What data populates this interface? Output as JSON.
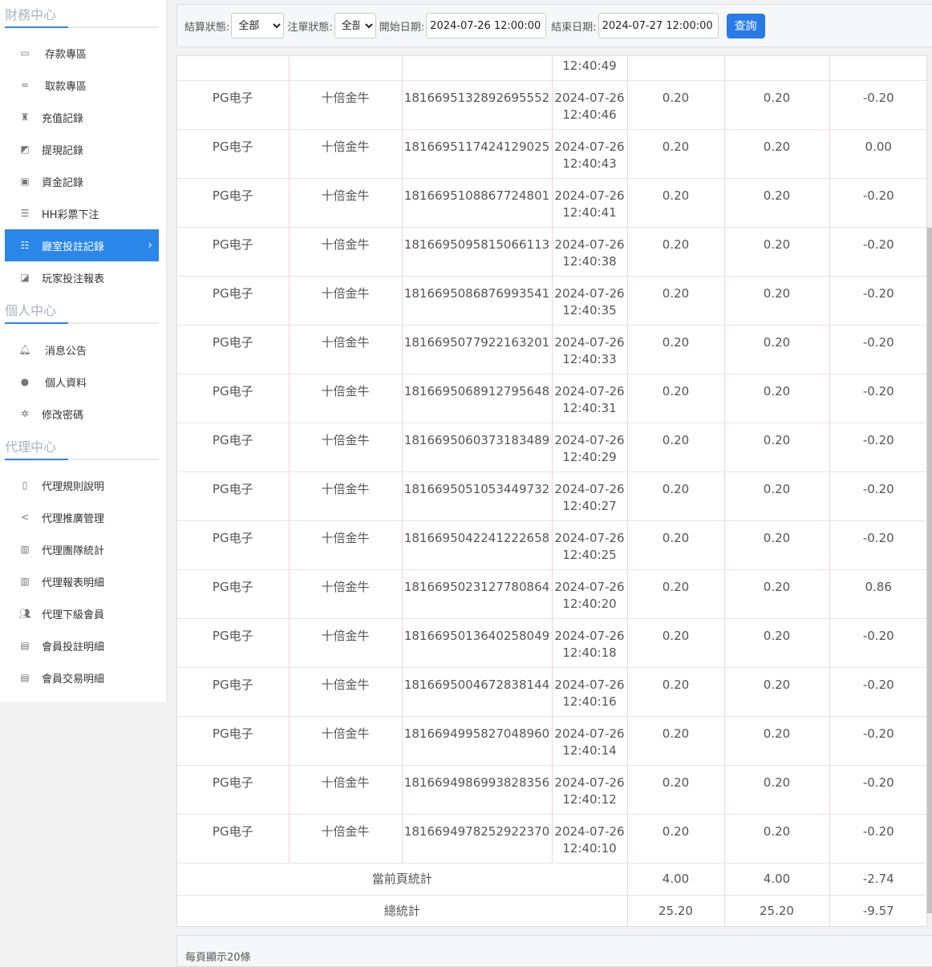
{
  "sidebar": {
    "finance_title": "財務中心",
    "finance_items": [
      {
        "label": "存款專區",
        "icon": "card-icon"
      },
      {
        "label": "取款專區",
        "icon": "hand-money-icon"
      },
      {
        "label": "充值記錄",
        "icon": "money-bag-icon"
      },
      {
        "label": "提現記錄",
        "icon": "wallet-icon"
      },
      {
        "label": "資金記錄",
        "icon": "safe-icon"
      },
      {
        "label": "HH彩票下注",
        "icon": "list-icon"
      },
      {
        "label": "廳室投註記錄",
        "icon": "list-bullets-icon",
        "active": true
      },
      {
        "label": "玩家投注報表",
        "icon": "chart-icon"
      }
    ],
    "personal_title": "個人中心",
    "personal_items": [
      {
        "label": "消息公告",
        "icon": "bell-icon"
      },
      {
        "label": "個人資料",
        "icon": "user-icon"
      },
      {
        "label": "修改密碼",
        "icon": "gear-icon"
      }
    ],
    "agent_title": "代理中心",
    "agent_items": [
      {
        "label": "代理規則說明",
        "icon": "file-icon"
      },
      {
        "label": "代理推廣管理",
        "icon": "share-icon"
      },
      {
        "label": "代理團隊統計",
        "icon": "book-icon"
      },
      {
        "label": "代理報表明細",
        "icon": "book-icon"
      },
      {
        "label": "代理下級會員",
        "icon": "users-icon"
      },
      {
        "label": "會員投註明細",
        "icon": "clipboard-icon"
      },
      {
        "label": "會員交易明細",
        "icon": "document-icon"
      }
    ]
  },
  "filter": {
    "settle_label": "結算狀態:",
    "settle_value": "全部",
    "order_label": "注單狀態:",
    "order_value": "全部",
    "start_label": "開始日期:",
    "start_value": "2024-07-26 12:00:00",
    "end_label": "結束日期:",
    "end_value": "2024-07-27 12:00:00",
    "query_label": "查詢"
  },
  "table": {
    "first_partial_time": "12:40:49",
    "rows": [
      [
        "PG电子",
        "十倍金牛",
        "1816695132892695552",
        "2024-07-26",
        "12:40:46",
        "0.20",
        "0.20",
        "-0.20"
      ],
      [
        "PG电子",
        "十倍金牛",
        "1816695117424129025",
        "2024-07-26",
        "12:40:43",
        "0.20",
        "0.20",
        "0.00"
      ],
      [
        "PG电子",
        "十倍金牛",
        "1816695108867724801",
        "2024-07-26",
        "12:40:41",
        "0.20",
        "0.20",
        "-0.20"
      ],
      [
        "PG电子",
        "十倍金牛",
        "1816695095815066113",
        "2024-07-26",
        "12:40:38",
        "0.20",
        "0.20",
        "-0.20"
      ],
      [
        "PG电子",
        "十倍金牛",
        "1816695086876993541",
        "2024-07-26",
        "12:40:35",
        "0.20",
        "0.20",
        "-0.20"
      ],
      [
        "PG电子",
        "十倍金牛",
        "1816695077922163201",
        "2024-07-26",
        "12:40:33",
        "0.20",
        "0.20",
        "-0.20"
      ],
      [
        "PG电子",
        "十倍金牛",
        "1816695068912795648",
        "2024-07-26",
        "12:40:31",
        "0.20",
        "0.20",
        "-0.20"
      ],
      [
        "PG电子",
        "十倍金牛",
        "1816695060373183489",
        "2024-07-26",
        "12:40:29",
        "0.20",
        "0.20",
        "-0.20"
      ],
      [
        "PG电子",
        "十倍金牛",
        "1816695051053449732",
        "2024-07-26",
        "12:40:27",
        "0.20",
        "0.20",
        "-0.20"
      ],
      [
        "PG电子",
        "十倍金牛",
        "1816695042241222658",
        "2024-07-26",
        "12:40:25",
        "0.20",
        "0.20",
        "-0.20"
      ],
      [
        "PG电子",
        "十倍金牛",
        "1816695023127780864",
        "2024-07-26",
        "12:40:20",
        "0.20",
        "0.20",
        "0.86"
      ],
      [
        "PG电子",
        "十倍金牛",
        "1816695013640258049",
        "2024-07-26",
        "12:40:18",
        "0.20",
        "0.20",
        "-0.20"
      ],
      [
        "PG电子",
        "十倍金牛",
        "1816695004672838144",
        "2024-07-26",
        "12:40:16",
        "0.20",
        "0.20",
        "-0.20"
      ],
      [
        "PG电子",
        "十倍金牛",
        "1816694995827048960",
        "2024-07-26",
        "12:40:14",
        "0.20",
        "0.20",
        "-0.20"
      ],
      [
        "PG电子",
        "十倍金牛",
        "1816694986993828356",
        "2024-07-26",
        "12:40:12",
        "0.20",
        "0.20",
        "-0.20"
      ],
      [
        "PG电子",
        "十倍金牛",
        "1816694978252922370",
        "2024-07-26",
        "12:40:10",
        "0.20",
        "0.20",
        "-0.20"
      ]
    ],
    "page_total": {
      "label": "當前頁統計",
      "values": [
        "4.00",
        "4.00",
        "-2.74"
      ]
    },
    "grand_total": {
      "label": "總統計",
      "values": [
        "25.20",
        "25.20",
        "-9.57"
      ]
    }
  },
  "pager": {
    "text": "每頁顯示20條"
  }
}
